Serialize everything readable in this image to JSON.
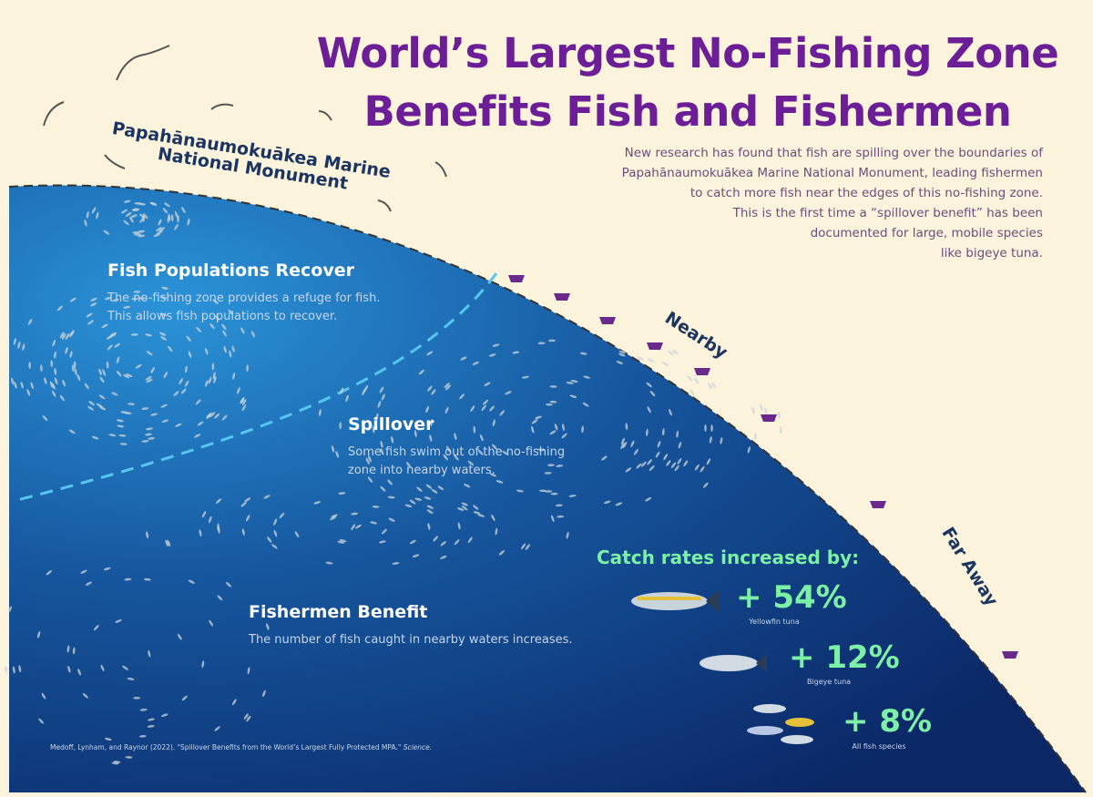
{
  "title": {
    "lines": [
      "World’s Largest No-Fishing Zone",
      "Benefits Fish and Fishermen"
    ]
  },
  "monument_label": {
    "lines": [
      "Papahānaumokuākea Marine",
      "National Monument"
    ]
  },
  "intro": {
    "lines": [
      "New research has found that fish are spilling over the boundaries of",
      "Papahānaumokuākea Marine National Monument, leading fishermen",
      "to catch more fish near the edges of this no-fishing zone.",
      "This is the first time a “spillover benefit” has been",
      "documented for large, mobile species",
      "like bigeye tuna."
    ]
  },
  "sections": [
    {
      "heading": "Fish Populations Recover",
      "lines": [
        "The no-fishing zone provides a refuge for fish.",
        "This allows fish populations to recover."
      ]
    },
    {
      "heading": "Spillover",
      "lines": [
        "Some fish swim out of the no-fishing",
        "zone into nearby waters."
      ]
    },
    {
      "heading": "Fishermen Benefit",
      "lines": [
        "The number of fish caught in nearby waters increases."
      ]
    }
  ],
  "zones": [
    "Nearby",
    "Far Away"
  ],
  "catch": {
    "heading": "Catch rates increased by:",
    "items": [
      {
        "value": "+ 54%",
        "species": "Yellowfin tuna"
      },
      {
        "value": "+ 12%",
        "species": "Bigeye tuna"
      },
      {
        "value": "+ 8%",
        "species": "All fish species"
      }
    ]
  },
  "citation": {
    "text": "Medoff, Lynham, and Raynor (2022). \"Spillover Benefits from the World’s Largest Fully Protected MPA.\"",
    "journal": "Science."
  }
}
